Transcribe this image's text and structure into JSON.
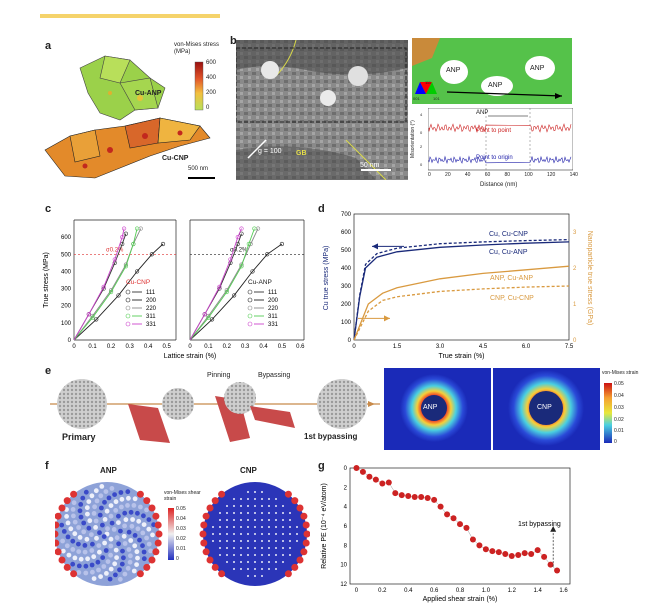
{
  "panels": {
    "a": {
      "label": "a",
      "colorbar_title": "von-Mises stress (MPa)",
      "colorbar_ticks": [
        "600",
        "400",
        "200",
        "0"
      ],
      "grain_labels": [
        "Cu-ANP",
        "Cu-CNP"
      ],
      "scalebar": "500 nm"
    },
    "b": {
      "label": "b",
      "g_vector": "g = 100",
      "gb_label": "GB",
      "scalebar": "50 nm",
      "anp_labels": [
        "ANP",
        "ANP",
        "ANP"
      ],
      "ipf_ticks": [
        "001",
        "101",
        "111"
      ],
      "profile_top_label": "ANP",
      "profile_series": [
        "Point to point",
        "Point to origin"
      ],
      "profile_ylabel": "Misorientation (°)",
      "profile_xlabel": "Distance (nm)",
      "profile_xticks": [
        "0",
        "20",
        "40",
        "60",
        "80",
        "100",
        "120",
        "140"
      ],
      "profile_yticks": [
        "4",
        "0",
        "2",
        "0"
      ]
    },
    "c": {
      "label": "c",
      "ylabel": "True stress (MPa)",
      "xlabel": "Lattice strain (%)",
      "yticks": [
        "0",
        "100",
        "200",
        "300",
        "400",
        "500",
        "600"
      ],
      "xticks_left": [
        "0",
        "0.1",
        "0.2",
        "0.3",
        "0.4",
        "0.5"
      ],
      "xticks_right": [
        "0",
        "0.1",
        "0.2",
        "0.3",
        "0.4",
        "0.5",
        "0.6"
      ],
      "sigma_label": "σ0.2%",
      "legend_left_title": "Cu-CNP",
      "legend_right_title": "Cu-ANP",
      "legend_entries": [
        "111",
        "200",
        "220",
        "311",
        "331"
      ],
      "legend_colors": [
        "#333333",
        "#222222",
        "#888888",
        "#55cc55",
        "#cc44cc"
      ]
    },
    "d": {
      "label": "d",
      "ylabel_left": "Cu true stress (MPa)",
      "ylabel_right": "Nanoparticle true stress (GPa)",
      "xlabel": "True strain (%)",
      "xticks": [
        "0",
        "1.5",
        "3.0",
        "4.5",
        "6.0",
        "7.5"
      ],
      "yticks_left": [
        "0",
        "100",
        "200",
        "300",
        "400",
        "500",
        "600",
        "700"
      ],
      "yticks_right": [
        "0",
        "1",
        "2",
        "3"
      ],
      "series_labels": [
        "Cu, Cu-CNP",
        "Cu, Cu-ANP",
        "ANP, Cu-ANP",
        "CNP, Cu-CNP"
      ]
    },
    "e": {
      "label": "e",
      "stage_labels": [
        "Primary",
        "Pinning",
        "Bypassing",
        "1st bypassing"
      ],
      "np_labels": [
        "ANP",
        "CNP"
      ],
      "colorbar_title": "von-Mises strain",
      "colorbar_ticks": [
        "0.05",
        "0.04",
        "0.03",
        "0.02",
        "0.01",
        "0"
      ]
    },
    "f": {
      "label": "f",
      "titles": [
        "ANP",
        "CNP"
      ],
      "colorbar_title": "von-Mises shear strain",
      "colorbar_ticks": [
        "0.05",
        "0.04",
        "0.03",
        "0.02",
        "0.01",
        "0"
      ]
    },
    "g": {
      "label": "g",
      "ylabel": "Relative PE (10⁻⁴ eV/atom)",
      "xlabel": "Applied shear strain (%)",
      "annotation": "1st bypassing",
      "xticks": [
        "0",
        "0.2",
        "0.4",
        "0.6",
        "0.8",
        "1.0",
        "1.2",
        "1.4",
        "1.6"
      ],
      "yticks": [
        "0",
        "2",
        "4",
        "6",
        "8",
        "10",
        "12"
      ]
    }
  },
  "colors": {
    "top_bar": "#f5d36b",
    "anp_navy": "#1a2a7a",
    "cnp_orange": "#d99a40",
    "red_marker": "#cc2222"
  },
  "chart_data": [
    {
      "type": "line",
      "panel": "c",
      "title": "",
      "xlabel": "Lattice strain (%)",
      "ylabel": "True stress (MPa)",
      "xlim": [
        0,
        0.55
      ],
      "ylim": [
        0,
        700
      ],
      "series": [
        {
          "name": "Cu-CNP 111",
          "x": [
            0,
            0.08,
            0.16,
            0.22,
            0.26,
            0.28
          ],
          "y": [
            0,
            150,
            300,
            450,
            560,
            620
          ]
        },
        {
          "name": "Cu-CNP 200",
          "x": [
            0,
            0.12,
            0.24,
            0.34,
            0.42,
            0.48
          ],
          "y": [
            0,
            120,
            260,
            400,
            500,
            560
          ]
        },
        {
          "name": "Cu-CNP 220",
          "x": [
            0,
            0.1,
            0.2,
            0.28,
            0.32,
            0.36
          ],
          "y": [
            0,
            140,
            290,
            440,
            560,
            650
          ]
        },
        {
          "name": "Cu-CNP 311",
          "x": [
            0,
            0.1,
            0.2,
            0.28,
            0.32,
            0.34
          ],
          "y": [
            0,
            130,
            280,
            430,
            560,
            650
          ]
        },
        {
          "name": "Cu-CNP 331",
          "x": [
            0,
            0.08,
            0.16,
            0.22,
            0.26,
            0.27
          ],
          "y": [
            0,
            150,
            310,
            470,
            600,
            650
          ]
        },
        {
          "name": "Cu-ANP 111",
          "x": [
            0,
            0.08,
            0.16,
            0.22,
            0.26,
            0.28
          ],
          "y": [
            0,
            150,
            300,
            450,
            560,
            620
          ]
        },
        {
          "name": "Cu-ANP 200",
          "x": [
            0,
            0.12,
            0.24,
            0.34,
            0.42,
            0.5
          ],
          "y": [
            0,
            120,
            260,
            400,
            500,
            560
          ]
        },
        {
          "name": "Cu-ANP 220",
          "x": [
            0,
            0.1,
            0.2,
            0.28,
            0.33,
            0.37
          ],
          "y": [
            0,
            140,
            290,
            440,
            560,
            650
          ]
        },
        {
          "name": "Cu-ANP 311",
          "x": [
            0,
            0.1,
            0.2,
            0.28,
            0.32,
            0.35
          ],
          "y": [
            0,
            130,
            280,
            430,
            560,
            650
          ]
        },
        {
          "name": "Cu-ANP 331",
          "x": [
            0,
            0.08,
            0.16,
            0.22,
            0.26,
            0.28
          ],
          "y": [
            0,
            150,
            310,
            470,
            600,
            650
          ]
        }
      ]
    },
    {
      "type": "line",
      "panel": "d",
      "title": "",
      "xlabel": "True strain (%)",
      "ylabel": "Cu true stress (MPa)",
      "xlim": [
        0,
        7.5
      ],
      "ylim": [
        0,
        700
      ],
      "series": [
        {
          "name": "Cu, Cu-CNP",
          "x": [
            0,
            0.2,
            0.4,
            0.8,
            1.5,
            3.0,
            4.5,
            6.0,
            7.5
          ],
          "y": [
            0,
            250,
            420,
            480,
            510,
            535,
            545,
            552,
            558
          ]
        },
        {
          "name": "Cu, Cu-ANP",
          "x": [
            0,
            0.2,
            0.4,
            0.8,
            1.5,
            3.0,
            4.5,
            6.0,
            7.5
          ],
          "y": [
            0,
            240,
            400,
            460,
            490,
            515,
            528,
            538,
            545
          ]
        },
        {
          "name": "ANP, Cu-ANP",
          "x": [
            0,
            0.5,
            1.0,
            1.5,
            3.0,
            4.5,
            6.0,
            7.5
          ],
          "y": [
            0,
            1.0,
            1.3,
            1.45,
            1.7,
            1.85,
            1.95,
            2.05
          ]
        },
        {
          "name": "CNP, Cu-CNP",
          "x": [
            0,
            0.5,
            1.0,
            1.5,
            3.0,
            4.5,
            6.0,
            7.5
          ],
          "y": [
            0,
            0.8,
            1.1,
            1.2,
            1.35,
            1.42,
            1.47,
            1.5
          ]
        }
      ],
      "secondary_axis": {
        "label": "Nanoparticle true stress (GPa)",
        "ylim": [
          0,
          3.5
        ]
      }
    },
    {
      "type": "scatter",
      "panel": "g",
      "title": "",
      "xlabel": "Applied shear strain (%)",
      "ylabel": "Relative PE (10⁻⁴ eV/atom)",
      "xlim": [
        -0.05,
        1.65
      ],
      "ylim": [
        0,
        12
      ],
      "series": [
        {
          "name": "",
          "x": [
            0,
            0.05,
            0.1,
            0.15,
            0.2,
            0.25,
            0.3,
            0.35,
            0.4,
            0.45,
            0.5,
            0.55,
            0.6,
            0.65,
            0.7,
            0.75,
            0.8,
            0.85,
            0.9,
            0.95,
            1.0,
            1.05,
            1.1,
            1.15,
            1.2,
            1.25,
            1.3,
            1.35,
            1.4,
            1.45,
            1.5,
            1.55
          ],
          "y": [
            0,
            0.4,
            0.9,
            1.2,
            1.6,
            1.5,
            2.6,
            2.8,
            2.9,
            3.0,
            3.0,
            3.1,
            3.3,
            4.0,
            4.8,
            5.2,
            5.8,
            6.2,
            7.4,
            8.0,
            8.4,
            8.6,
            8.7,
            8.9,
            9.1,
            9.0,
            8.8,
            8.9,
            8.5,
            9.2,
            10.0,
            10.6
          ]
        }
      ]
    }
  ]
}
